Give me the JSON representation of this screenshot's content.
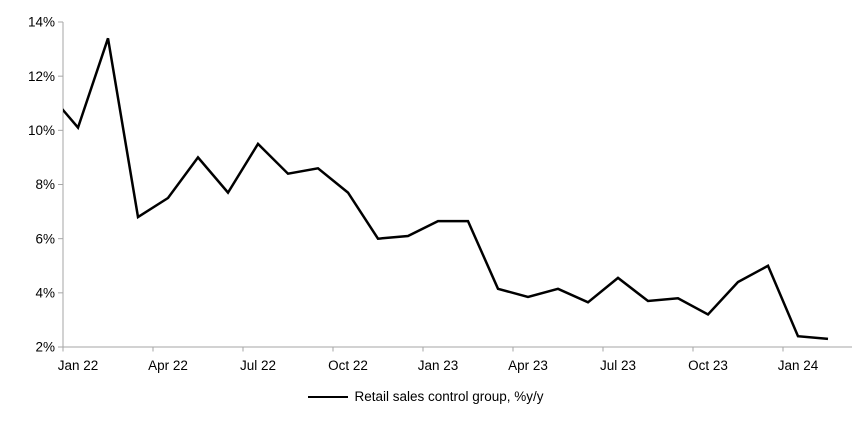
{
  "chart_data": {
    "type": "line",
    "title": "",
    "legend": {
      "position": "bottom-center",
      "entries": [
        {
          "label": "Retail sales control group, %y/y",
          "color": "#000000"
        }
      ]
    },
    "x": [
      "Jan 22",
      "Feb 22",
      "Mar 22",
      "Apr 22",
      "May 22",
      "Jun 22",
      "Jul 22",
      "Aug 22",
      "Sep 22",
      "Oct 22",
      "Nov 22",
      "Dec 22",
      "Jan 23",
      "Feb 23",
      "Mar 23",
      "Apr 23",
      "May 23",
      "Jun 23",
      "Jul 23",
      "Aug 23",
      "Sep 23",
      "Oct 23",
      "Nov 23",
      "Dec 23",
      "Jan 24",
      "Feb 24"
    ],
    "series": [
      {
        "name": "Retail sales control group, %y/y",
        "color": "#000000",
        "values": [
          10.1,
          13.4,
          6.8,
          7.5,
          9.0,
          7.7,
          9.5,
          8.4,
          8.6,
          7.7,
          6.0,
          6.1,
          6.65,
          6.65,
          4.15,
          3.85,
          4.15,
          3.65,
          4.55,
          3.7,
          3.8,
          3.2,
          4.4,
          5.0,
          2.4,
          2.3
        ]
      }
    ],
    "clipped_entry": {
      "note": "line enters plot from left axis edge mid-segment",
      "value_at_left_axis": 10.75,
      "extrapolated_prev_value": 11.4
    },
    "y_axis": {
      "min": 2,
      "max": 14,
      "step": 2,
      "unit": "%",
      "tick_labels": [
        "2%",
        "4%",
        "6%",
        "8%",
        "10%",
        "12%",
        "14%"
      ]
    },
    "x_axis": {
      "shown_tick_labels": [
        "Jan 22",
        "Apr 22",
        "Jul 22",
        "Oct 22",
        "Jan 23",
        "Apr 23",
        "Jul 23",
        "Oct 23",
        "Jan 24"
      ],
      "label_month_indices": [
        0,
        3,
        6,
        9,
        12,
        15,
        18,
        21,
        24
      ],
      "months_per_tick": 3
    },
    "grid": "off",
    "colors": {
      "line": "#000000",
      "axis": "#A6A6A6",
      "text": "#000000",
      "background": "#FFFFFF"
    }
  }
}
